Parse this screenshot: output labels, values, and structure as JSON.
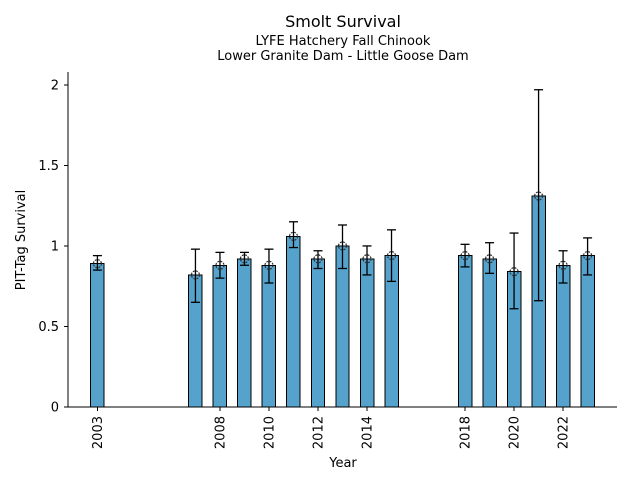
{
  "chart_data": {
    "type": "bar",
    "title": "Smolt Survival",
    "subtitle_line1": "LYFE Hatchery Fall Chinook",
    "subtitle_line2": "Lower Granite Dam - Little Goose Dam",
    "xlabel": "Year",
    "ylabel": "PIT-Tag Survival",
    "xlim": [
      2001.8,
      2024.2
    ],
    "ylim": [
      0,
      2.08
    ],
    "x_tick_years": [
      2003,
      2008,
      2010,
      2012,
      2014,
      2018,
      2020,
      2022
    ],
    "x_tick_labels": [
      "2003",
      "2008",
      "2010",
      "2012",
      "2014",
      "2018",
      "2020",
      "2022"
    ],
    "y_ticks": [
      0,
      0.5,
      1,
      1.5,
      2
    ],
    "y_tick_labels": [
      "0",
      "0.5",
      "1",
      "1.5",
      "2"
    ],
    "grid": false,
    "legend": "none",
    "bar_color": "#55a3cd",
    "bar_edge_color": "#000000",
    "error_bar_color": "#000000",
    "marker_style": "open-circle",
    "bar_width_years": 0.55,
    "points": [
      {
        "year": 2003,
        "value": 0.89,
        "lo": 0.85,
        "hi": 0.94
      },
      {
        "year": 2007,
        "value": 0.82,
        "lo": 0.65,
        "hi": 0.98
      },
      {
        "year": 2008,
        "value": 0.88,
        "lo": 0.8,
        "hi": 0.96
      },
      {
        "year": 2009,
        "value": 0.92,
        "lo": 0.88,
        "hi": 0.96
      },
      {
        "year": 2010,
        "value": 0.88,
        "lo": 0.77,
        "hi": 0.98
      },
      {
        "year": 2011,
        "value": 1.06,
        "lo": 0.99,
        "hi": 1.15
      },
      {
        "year": 2012,
        "value": 0.92,
        "lo": 0.86,
        "hi": 0.97
      },
      {
        "year": 2013,
        "value": 1.0,
        "lo": 0.86,
        "hi": 1.13
      },
      {
        "year": 2014,
        "value": 0.92,
        "lo": 0.82,
        "hi": 1.0
      },
      {
        "year": 2015,
        "value": 0.94,
        "lo": 0.78,
        "hi": 1.1
      },
      {
        "year": 2018,
        "value": 0.94,
        "lo": 0.87,
        "hi": 1.01
      },
      {
        "year": 2019,
        "value": 0.92,
        "lo": 0.83,
        "hi": 1.02
      },
      {
        "year": 2020,
        "value": 0.84,
        "lo": 0.61,
        "hi": 1.08
      },
      {
        "year": 2021,
        "value": 1.31,
        "lo": 0.66,
        "hi": 1.97
      },
      {
        "year": 2022,
        "value": 0.88,
        "lo": 0.77,
        "hi": 0.97
      },
      {
        "year": 2023,
        "value": 0.94,
        "lo": 0.82,
        "hi": 1.05
      }
    ]
  }
}
